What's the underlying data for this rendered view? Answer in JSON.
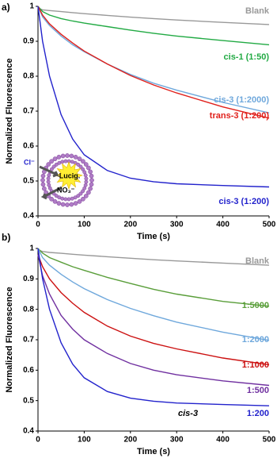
{
  "chart_data": [
    {
      "type": "line",
      "panel_label": "a)",
      "xlabel": "Time (s)",
      "ylabel": "Normalized Fluorescence",
      "x": [
        0,
        10,
        25,
        50,
        75,
        100,
        150,
        200,
        250,
        300,
        400,
        500
      ],
      "xlim": [
        0,
        500
      ],
      "xticks": [
        0,
        100,
        200,
        300,
        400,
        500
      ],
      "ylim": [
        0.4,
        1
      ],
      "yticks": [
        0.4,
        0.5,
        0.6,
        0.7,
        0.8,
        0.9,
        1
      ],
      "series": [
        {
          "name": "Blank",
          "color": "#999999",
          "values": [
            0.995,
            0.99,
            0.988,
            0.985,
            0.982,
            0.979,
            0.974,
            0.969,
            0.965,
            0.961,
            0.954,
            0.948
          ]
        },
        {
          "name": "cis-1 (1:50)",
          "color": "#22aa44",
          "values": [
            1,
            0.985,
            0.975,
            0.965,
            0.958,
            0.952,
            0.942,
            0.932,
            0.923,
            0.915,
            0.902,
            0.89
          ]
        },
        {
          "name": "cis-3 (1:2000)",
          "color": "#6fa8dc",
          "values": [
            1,
            0.97,
            0.945,
            0.915,
            0.89,
            0.87,
            0.835,
            0.805,
            0.78,
            0.76,
            0.725,
            0.695
          ]
        },
        {
          "name": "trans-3 (1:200)",
          "color": "#e0201b",
          "values": [
            1,
            0.975,
            0.95,
            0.92,
            0.895,
            0.872,
            0.835,
            0.802,
            0.775,
            0.752,
            0.712,
            0.68
          ]
        },
        {
          "name": "cis-3 (1:200)",
          "color": "#2222cc",
          "values": [
            1,
            0.9,
            0.8,
            0.69,
            0.62,
            0.575,
            0.53,
            0.508,
            0.498,
            0.492,
            0.487,
            0.483
          ]
        }
      ],
      "annotations": [
        "Cl⁻",
        "Lucig.",
        "NO₃⁻"
      ]
    },
    {
      "type": "line",
      "panel_label": "b)",
      "xlabel": "Time (s)",
      "ylabel": "Normalized Fluorescence",
      "x": [
        0,
        10,
        25,
        50,
        75,
        100,
        150,
        200,
        250,
        300,
        400,
        500
      ],
      "xlim": [
        0,
        500
      ],
      "xticks": [
        0,
        100,
        200,
        300,
        400,
        500
      ],
      "ylim": [
        0.4,
        1
      ],
      "yticks": [
        0.4,
        0.5,
        0.6,
        0.7,
        0.8,
        0.9,
        1
      ],
      "series": [
        {
          "name": "Blank",
          "color": "#999999",
          "values": [
            0.995,
            0.99,
            0.987,
            0.984,
            0.981,
            0.978,
            0.973,
            0.968,
            0.963,
            0.959,
            0.952,
            0.945
          ]
        },
        {
          "name": "1:5000",
          "color": "#5a9e3a",
          "values": [
            1,
            0.985,
            0.97,
            0.955,
            0.94,
            0.928,
            0.905,
            0.885,
            0.866,
            0.85,
            0.826,
            0.81
          ]
        },
        {
          "name": "1:2000",
          "color": "#6fa8dc",
          "values": [
            1,
            0.97,
            0.945,
            0.915,
            0.89,
            0.868,
            0.832,
            0.803,
            0.779,
            0.758,
            0.725,
            0.698
          ]
        },
        {
          "name": "1:1000",
          "color": "#cc1111",
          "values": [
            0.98,
            0.94,
            0.9,
            0.855,
            0.82,
            0.79,
            0.745,
            0.712,
            0.688,
            0.67,
            0.64,
            0.618
          ]
        },
        {
          "name": "1:500",
          "color": "#7030a0",
          "values": [
            0.98,
            0.91,
            0.85,
            0.78,
            0.735,
            0.7,
            0.655,
            0.622,
            0.6,
            0.585,
            0.565,
            0.55
          ]
        },
        {
          "name": "1:200",
          "color": "#2222cc",
          "values": [
            1,
            0.9,
            0.8,
            0.69,
            0.62,
            0.575,
            0.53,
            0.508,
            0.498,
            0.492,
            0.487,
            0.483
          ]
        }
      ],
      "annotations": [
        "cis-3"
      ]
    }
  ]
}
